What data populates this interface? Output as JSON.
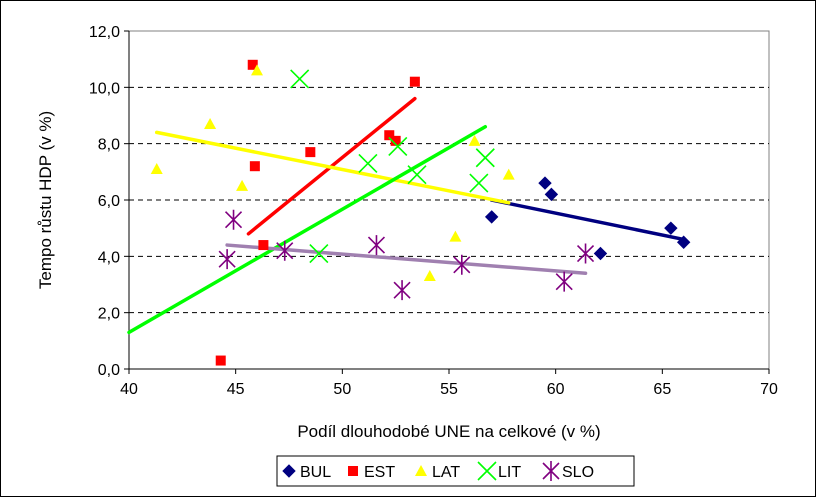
{
  "chart_data": {
    "type": "scatter",
    "title": "",
    "xlabel": "Podíl dlouhodobé UNE na celkové (v %)",
    "ylabel": "Tempo růstu HDP (v %)",
    "xlim": [
      40,
      70
    ],
    "ylim": [
      0,
      12
    ],
    "x_ticks": [
      "40",
      "45",
      "50",
      "55",
      "60",
      "65",
      "70"
    ],
    "y_ticks": [
      "0,0",
      "2,0",
      "4,0",
      "6,0",
      "8,0",
      "10,0",
      "12,0"
    ],
    "grid": "horizontal dashed",
    "legend_position": "bottom",
    "series": [
      {
        "name": "BUL",
        "marker": "diamond",
        "color": "#000080",
        "points": [
          [
            57.0,
            5.4
          ],
          [
            59.5,
            6.6
          ],
          [
            59.8,
            6.2
          ],
          [
            62.1,
            4.1
          ],
          [
            65.4,
            5.0
          ],
          [
            66.0,
            4.5
          ]
        ],
        "trend": [
          [
            57.0,
            6.0
          ],
          [
            66.0,
            4.6
          ]
        ]
      },
      {
        "name": "EST",
        "marker": "square",
        "color": "#ff0000",
        "points": [
          [
            44.3,
            0.3
          ],
          [
            45.8,
            10.8
          ],
          [
            45.9,
            7.2
          ],
          [
            46.3,
            4.4
          ],
          [
            48.5,
            7.7
          ],
          [
            52.2,
            8.3
          ],
          [
            52.5,
            8.1
          ],
          [
            53.4,
            10.2
          ]
        ],
        "trend": [
          [
            45.6,
            4.8
          ],
          [
            53.4,
            9.6
          ]
        ]
      },
      {
        "name": "LAT",
        "marker": "triangle",
        "color": "#ffff00",
        "points": [
          [
            41.3,
            7.1
          ],
          [
            43.8,
            8.7
          ],
          [
            45.3,
            6.5
          ],
          [
            46.0,
            10.6
          ],
          [
            54.1,
            3.3
          ],
          [
            55.3,
            4.7
          ],
          [
            56.2,
            8.1
          ],
          [
            57.8,
            6.9
          ]
        ],
        "trend": [
          [
            41.3,
            8.4
          ],
          [
            57.8,
            5.9
          ]
        ]
      },
      {
        "name": "LIT",
        "marker": "x",
        "color": "#00ff00",
        "points": [
          [
            48.0,
            10.3
          ],
          [
            48.9,
            4.1
          ],
          [
            51.2,
            7.3
          ],
          [
            52.6,
            7.9
          ],
          [
            53.5,
            6.9
          ],
          [
            56.4,
            6.6
          ],
          [
            56.7,
            7.5
          ]
        ],
        "trend": [
          [
            40.0,
            1.3
          ],
          [
            56.7,
            8.6
          ]
        ]
      },
      {
        "name": "SLO",
        "marker": "asterisk",
        "color": "#800080",
        "points": [
          [
            44.6,
            3.9
          ],
          [
            44.9,
            5.3
          ],
          [
            47.3,
            4.2
          ],
          [
            51.6,
            4.4
          ],
          [
            52.8,
            2.8
          ],
          [
            55.6,
            3.7
          ],
          [
            60.4,
            3.1
          ],
          [
            61.4,
            4.1
          ]
        ],
        "trend": [
          [
            44.6,
            4.4
          ],
          [
            61.4,
            3.4
          ]
        ]
      }
    ]
  }
}
